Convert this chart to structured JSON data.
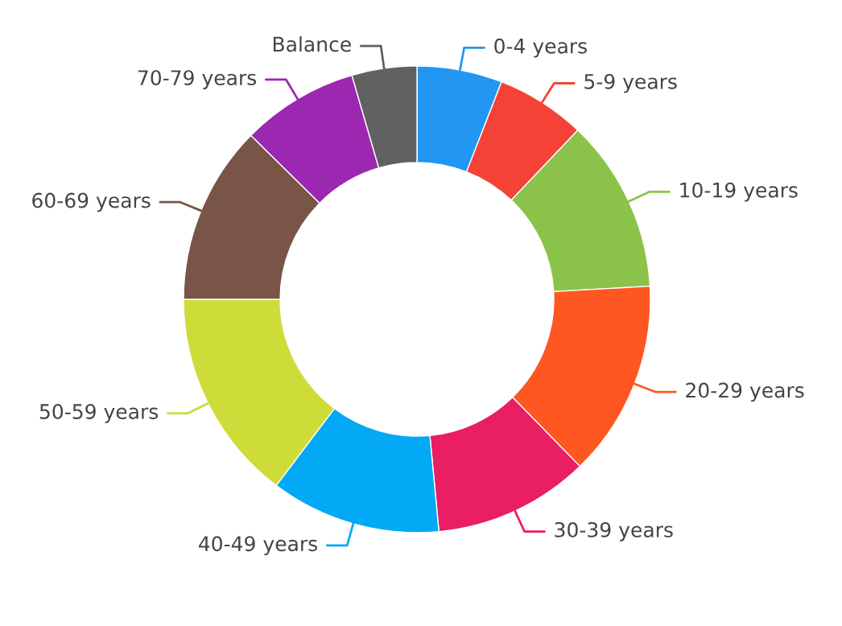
{
  "chart_data": {
    "type": "donut",
    "categories": [
      "0-4 years",
      "5-9 years",
      "10-19 years",
      "20-29 years",
      "30-39 years",
      "40-49 years",
      "50-59 years",
      "60-69 years",
      "70-79 years",
      "Balance"
    ],
    "values": [
      5.9,
      6.2,
      12.0,
      13.6,
      10.8,
      11.8,
      14.7,
      12.4,
      8.1,
      4.5
    ],
    "colors": [
      "#2196f3",
      "#f44336",
      "#8bc34a",
      "#ff5722",
      "#e91e63",
      "#03a9f4",
      "#cddc39",
      "#795548",
      "#9c27b0",
      "#616161"
    ]
  }
}
